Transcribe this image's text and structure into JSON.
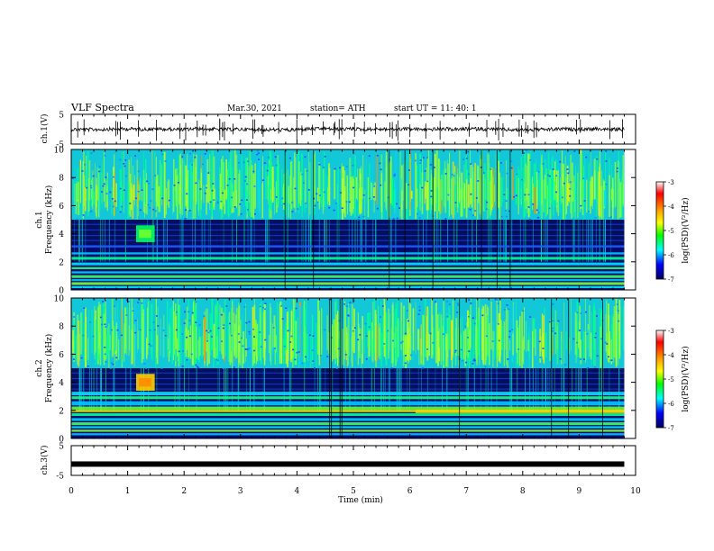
{
  "header": {
    "title": "VLF Spectra",
    "date": "Mar.30, 2021",
    "station": "station= ATH",
    "start": "start  UT  =   11: 40: 1"
  },
  "chart_data": [
    {
      "name": "ch1-waveform",
      "type": "line",
      "ylabel": "ch.1(V)",
      "ylim": [
        -5,
        5
      ],
      "yticks": [
        "5",
        "-5"
      ],
      "baseline_value": 0,
      "data_end_min": 9.8
    },
    {
      "name": "ch1-spectrogram",
      "type": "heatmap",
      "ylabel_line1": "ch.1",
      "ylabel_line2": "Frequency  (kHz)",
      "ylim": [
        0,
        10
      ],
      "yticks": [
        "0",
        "2",
        "4",
        "6",
        "8",
        "10"
      ],
      "colorbar_label": "log(PSD)(V²/Hz)",
      "colorbar_range": [
        -7,
        -3
      ],
      "colorbar_ticks": [
        "-3",
        "-4",
        "-5",
        "-6",
        "-7"
      ]
    },
    {
      "name": "ch2-spectrogram",
      "type": "heatmap",
      "ylabel_line1": "ch.2",
      "ylabel_line2": "Frequency  (kHz)",
      "ylim": [
        0,
        10
      ],
      "yticks": [
        "0",
        "2",
        "4",
        "6",
        "8",
        "10"
      ],
      "colorbar_label": "log(PSD)(V²/Hz)",
      "colorbar_range": [
        -7,
        -3
      ],
      "colorbar_ticks": [
        "-3",
        "-4",
        "-5",
        "-6",
        "-7"
      ]
    },
    {
      "name": "ch3-waveform",
      "type": "line",
      "ylabel": "ch.3(V)",
      "ylim": [
        -5,
        5
      ],
      "yticks": [
        "5",
        "-5"
      ],
      "baseline_value": -1.2,
      "data_end_min": 9.8
    }
  ],
  "xaxis": {
    "label": "Time  (min)",
    "range": [
      0,
      10
    ],
    "ticks": [
      "0",
      "1",
      "2",
      "3",
      "4",
      "5",
      "6",
      "7",
      "8",
      "9",
      "10"
    ]
  },
  "colors": {
    "spectrogram_background": "#000a6e",
    "noise_band": "#00e8a0",
    "strong_signal": "#ffe000"
  }
}
